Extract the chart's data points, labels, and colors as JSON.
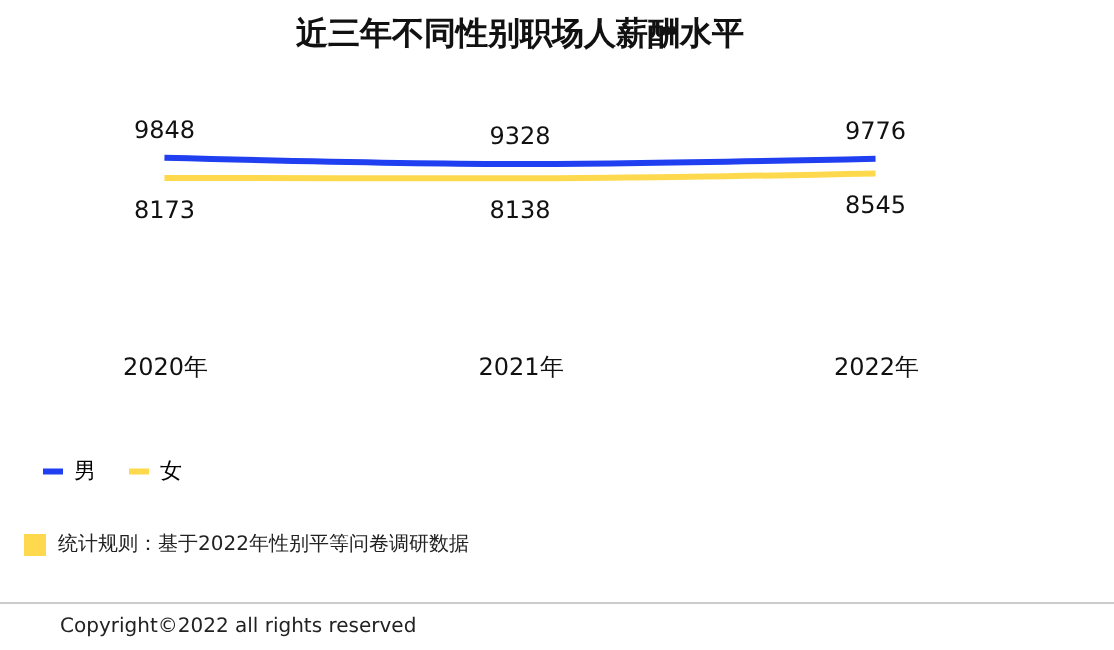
{
  "chart_data": {
    "type": "line",
    "title": "近三年不同性别职场人薪酬水平",
    "categories": [
      "2020年",
      "2021年",
      "2022年"
    ],
    "series": [
      {
        "name": "男",
        "color": "#1f3ff0",
        "values": [
          9848,
          9328,
          9776
        ]
      },
      {
        "name": "女",
        "color": "#ffd94d",
        "values": [
          8173,
          8138,
          8545
        ]
      }
    ],
    "data_labels": true,
    "legend": "bottom",
    "grid": false,
    "marker": "none",
    "annotations": [
      "统计规则：基于2022年性别平等问卷调研数据",
      "Copyright©2022 all rights reserved"
    ]
  }
}
